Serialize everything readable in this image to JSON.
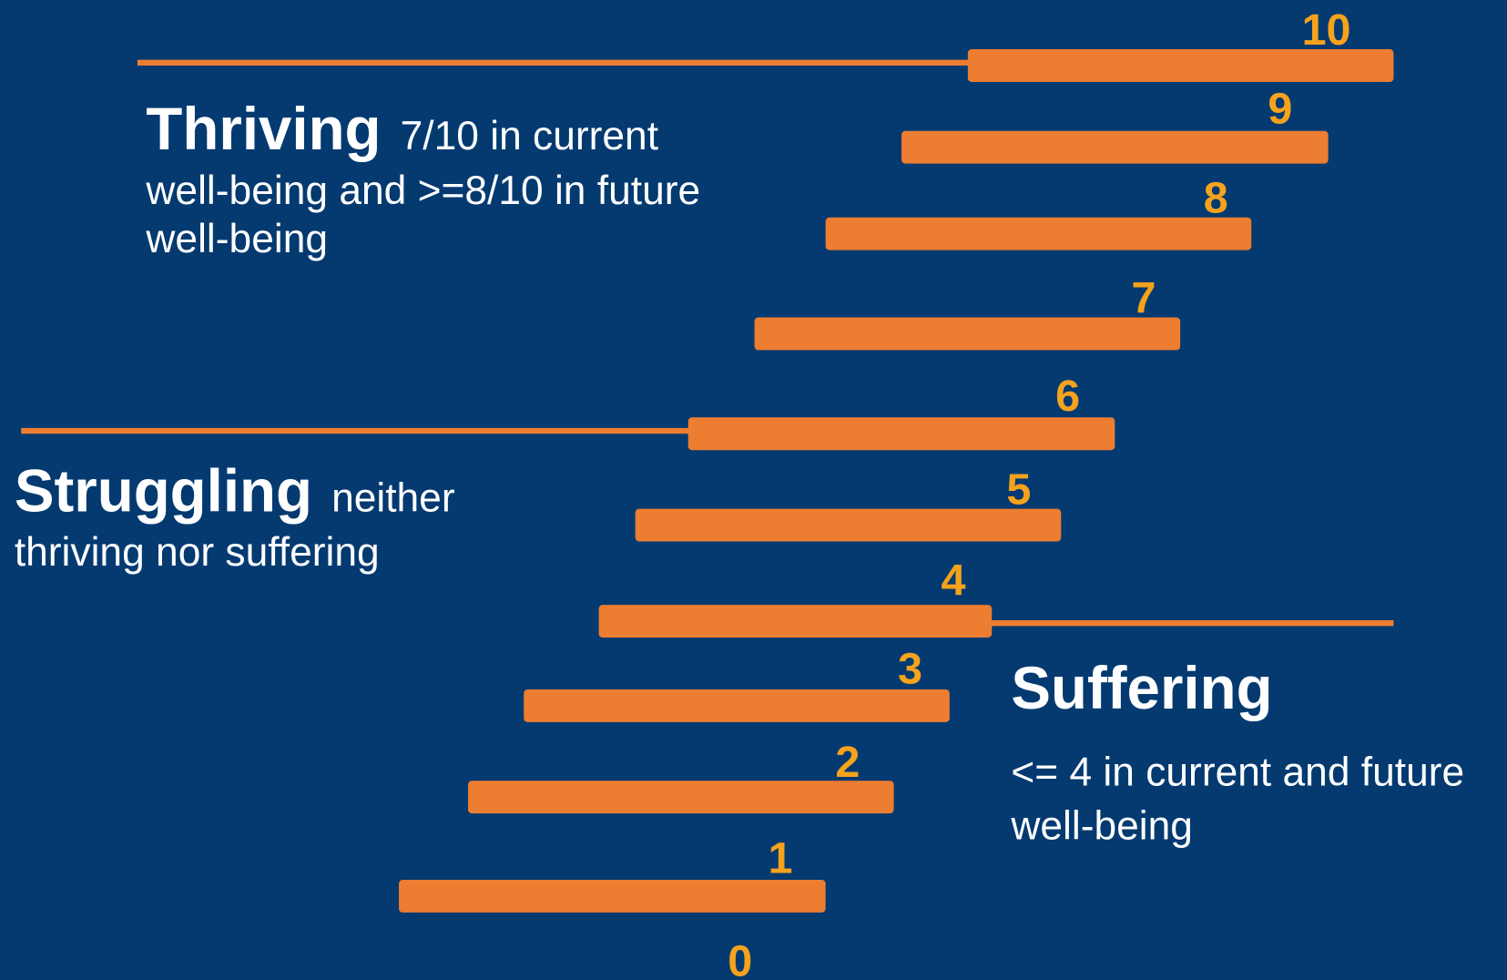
{
  "sections": [
    {
      "title": "Thriving",
      "description_lines": [
        "7/10 in current",
        "well-being and >=8/10 in future",
        "well-being"
      ]
    },
    {
      "title": "Struggling",
      "description_lines": [
        "neither",
        "thriving nor suffering"
      ]
    },
    {
      "title": "Suffering",
      "description_lines": [
        "<= 4 in current and future",
        "well-being"
      ]
    }
  ],
  "rungs": [
    "0",
    "1",
    "2",
    "3",
    "4",
    "5",
    "6",
    "7",
    "8",
    "9",
    "10"
  ]
}
